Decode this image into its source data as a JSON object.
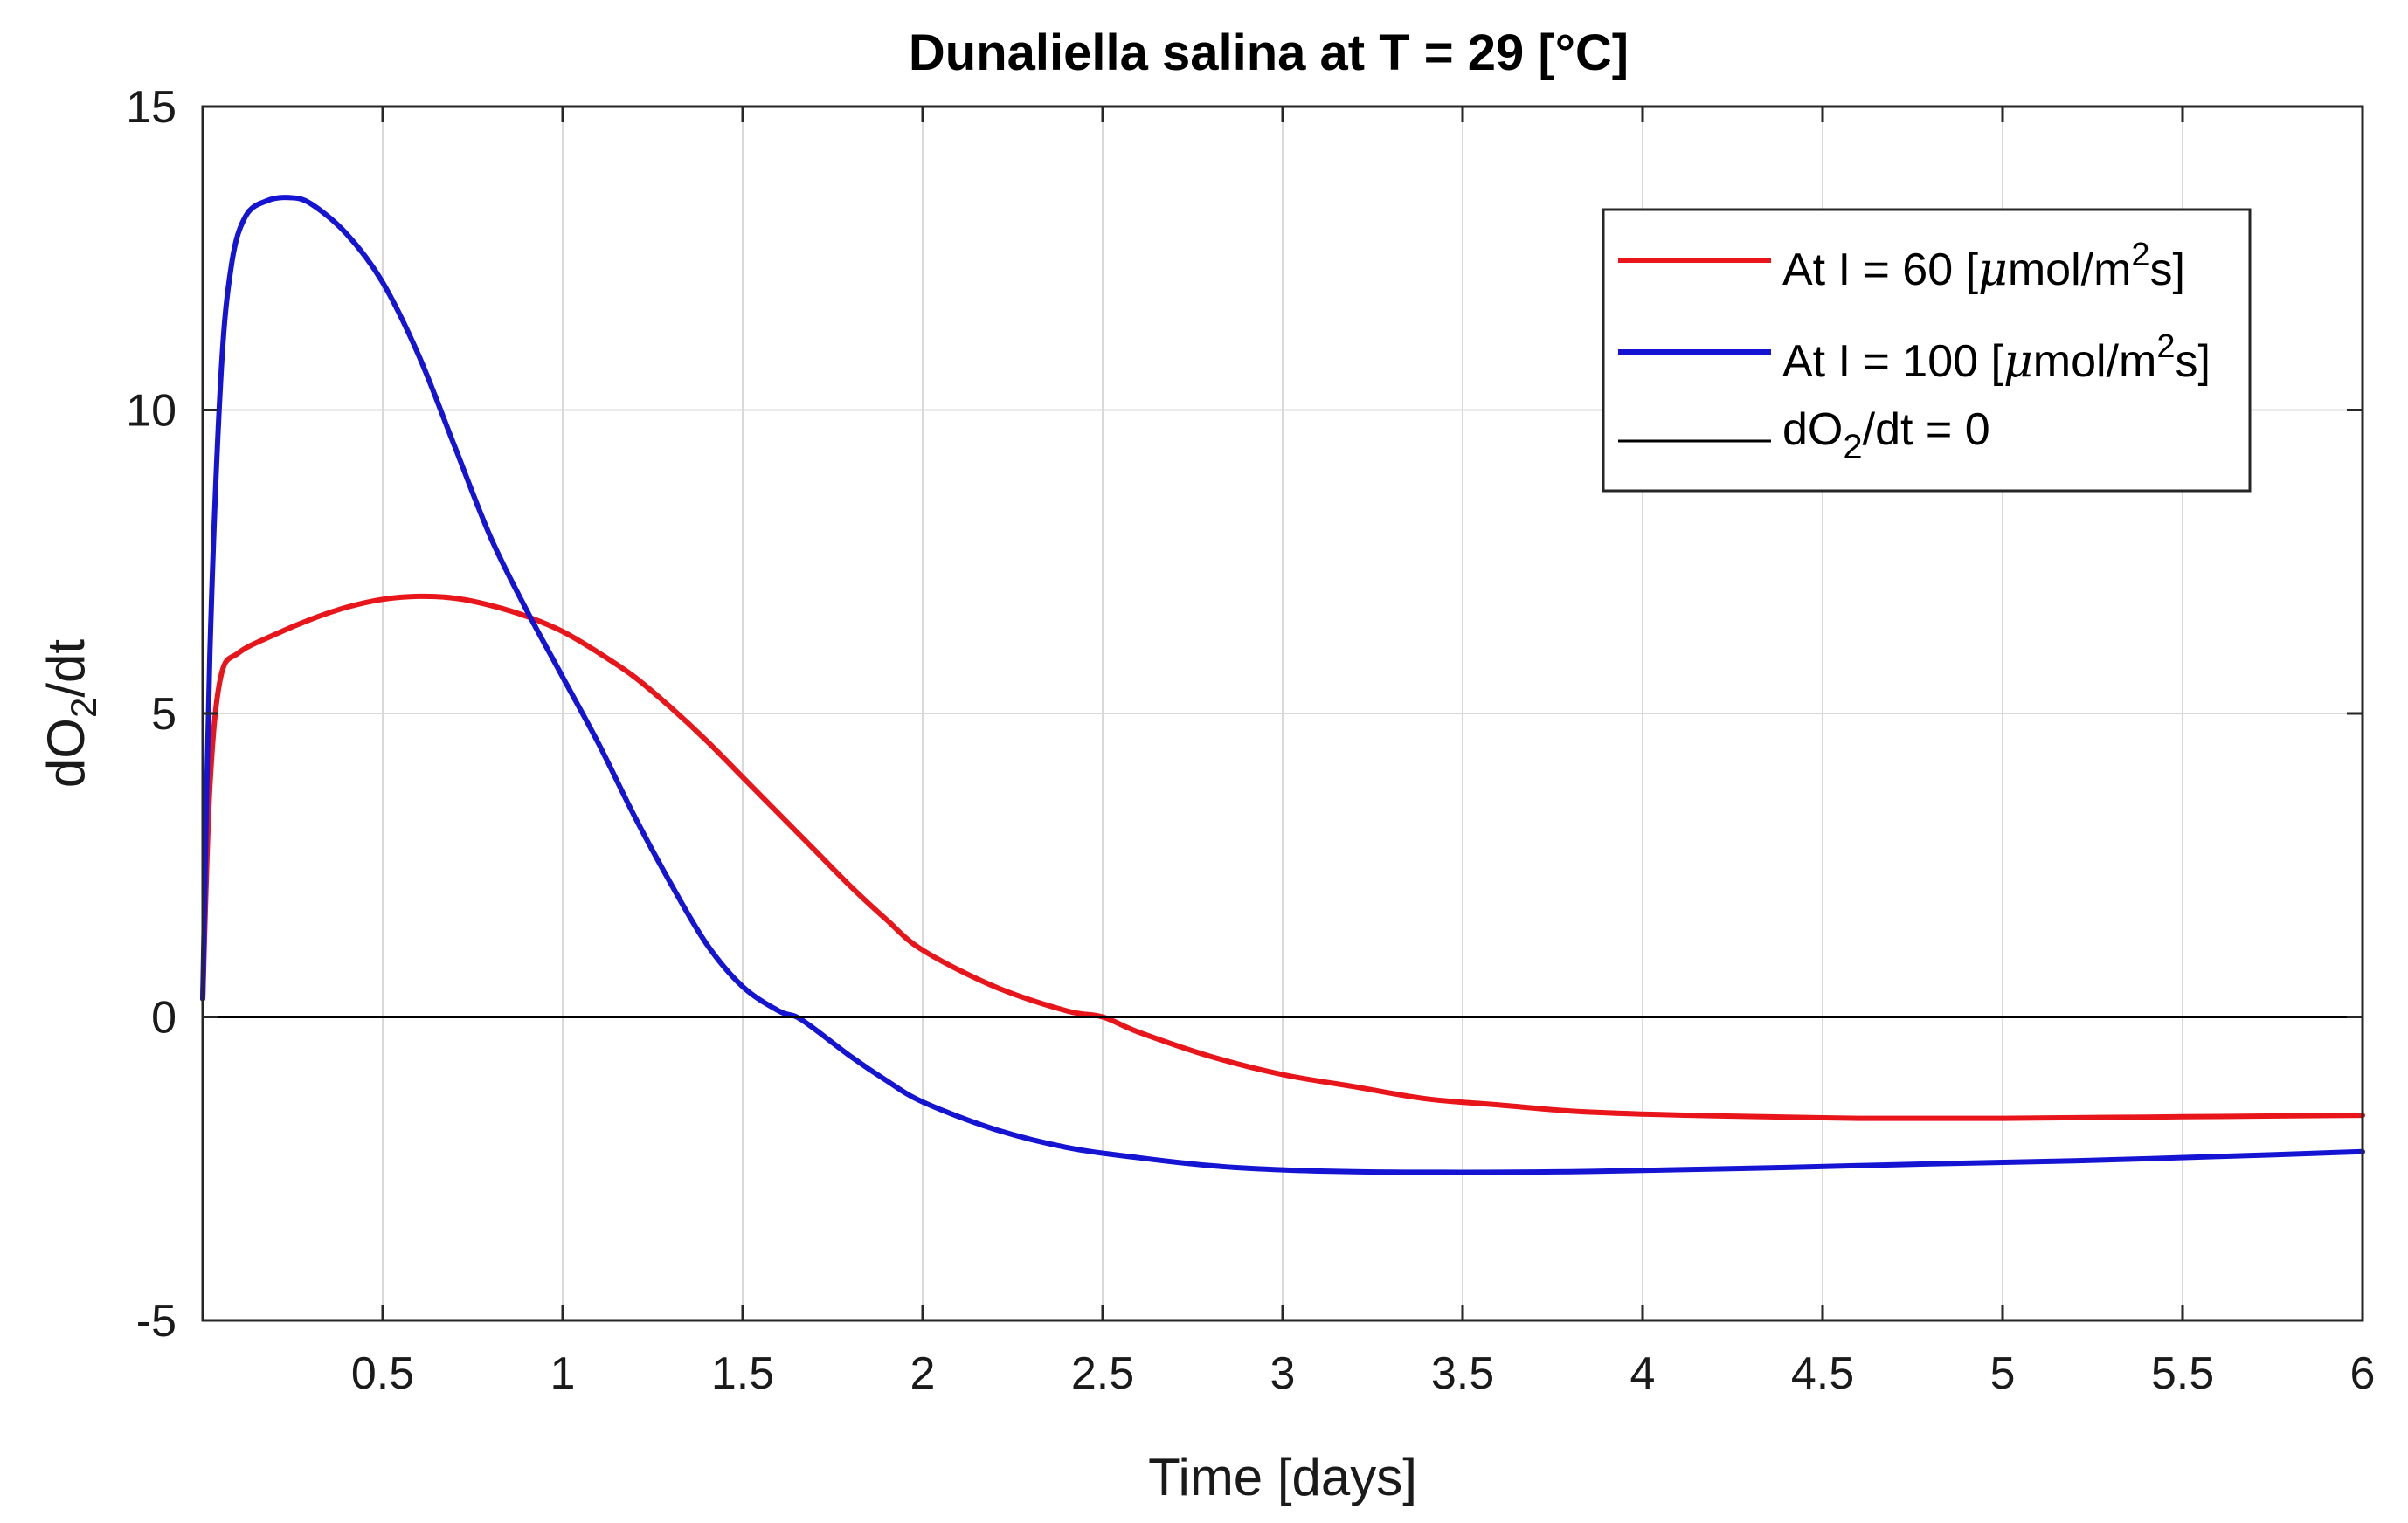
{
  "chart_data": {
    "type": "line",
    "title": "Dunaliella salina at T = 29 [°C]",
    "xlabel": "Time [days]",
    "ylabel": {
      "base": "dO",
      "sub": "2",
      "tail": "/dt"
    },
    "xlim": [
      0,
      6
    ],
    "ylim": [
      -5,
      15
    ],
    "xticks": [
      0.5,
      1,
      1.5,
      2,
      2.5,
      3,
      3.5,
      4,
      4.5,
      5,
      5.5,
      6
    ],
    "xtick_labels": [
      "0.5",
      "1",
      "1.5",
      "2",
      "2.5",
      "3",
      "3.5",
      "4",
      "4.5",
      "5",
      "5.5",
      "6"
    ],
    "yticks": [
      -5,
      0,
      5,
      10,
      15
    ],
    "ytick_labels": [
      "-5",
      "0",
      "5",
      "10",
      "15"
    ],
    "grid": true,
    "legend_position": "top-right",
    "series": [
      {
        "name": "At I = 60 [μmol/m²s]",
        "legend": {
          "pre": "At I = 60 [",
          "mu": "μ",
          "mid": "mol/m",
          "sup": "2",
          "post": "s]"
        },
        "color": "#e8151b",
        "x": [
          0,
          0.02,
          0.05,
          0.1,
          0.2,
          0.3,
          0.4,
          0.5,
          0.6,
          0.7,
          0.8,
          0.9,
          1.0,
          1.1,
          1.2,
          1.3,
          1.4,
          1.5,
          1.6,
          1.7,
          1.8,
          1.9,
          2.0,
          2.2,
          2.4,
          2.5,
          2.6,
          2.8,
          3.0,
          3.2,
          3.4,
          3.6,
          3.8,
          4.0,
          4.2,
          4.4,
          4.6,
          4.8,
          5.0,
          5.2,
          5.4,
          5.6,
          5.8,
          6.0
        ],
        "y": [
          0.3,
          3.8,
          5.6,
          6.0,
          6.3,
          6.55,
          6.75,
          6.88,
          6.93,
          6.9,
          6.78,
          6.6,
          6.35,
          6.0,
          5.6,
          5.1,
          4.55,
          3.95,
          3.35,
          2.75,
          2.15,
          1.6,
          1.1,
          0.5,
          0.1,
          0.0,
          -0.25,
          -0.65,
          -0.95,
          -1.15,
          -1.35,
          -1.45,
          -1.55,
          -1.6,
          -1.63,
          -1.65,
          -1.67,
          -1.67,
          -1.67,
          -1.66,
          -1.65,
          -1.64,
          -1.63,
          -1.62
        ]
      },
      {
        "name": "At I = 100 [μmol/m²s]",
        "legend": {
          "pre": "At I = 100 [",
          "mu": "μ",
          "mid": "mol/m",
          "sup": "2",
          "post": "s]"
        },
        "color": "#1414d2",
        "x": [
          0,
          0.02,
          0.05,
          0.08,
          0.12,
          0.18,
          0.24,
          0.3,
          0.4,
          0.5,
          0.6,
          0.7,
          0.8,
          0.9,
          1.0,
          1.1,
          1.2,
          1.3,
          1.4,
          1.5,
          1.6,
          1.65,
          1.7,
          1.8,
          1.9,
          2.0,
          2.2,
          2.4,
          2.6,
          2.8,
          3.0,
          3.2,
          3.4,
          3.6,
          3.8,
          4.0,
          4.4,
          4.8,
          5.2,
          5.6,
          6.0
        ],
        "y": [
          0.3,
          6.0,
          10.5,
          12.4,
          13.2,
          13.45,
          13.5,
          13.4,
          12.9,
          12.1,
          10.9,
          9.4,
          7.9,
          6.7,
          5.6,
          4.5,
          3.3,
          2.2,
          1.2,
          0.5,
          0.1,
          0.0,
          -0.2,
          -0.65,
          -1.05,
          -1.4,
          -1.85,
          -2.15,
          -2.32,
          -2.45,
          -2.52,
          -2.55,
          -2.56,
          -2.56,
          -2.55,
          -2.53,
          -2.48,
          -2.42,
          -2.37,
          -2.3,
          -2.22
        ]
      },
      {
        "name": "dO₂/dt = 0",
        "legend": {
          "pre": "dO",
          "sub": "2",
          "post": "/dt = 0"
        },
        "color": "#000000",
        "x": [
          0,
          6
        ],
        "y": [
          0,
          0
        ]
      }
    ]
  }
}
